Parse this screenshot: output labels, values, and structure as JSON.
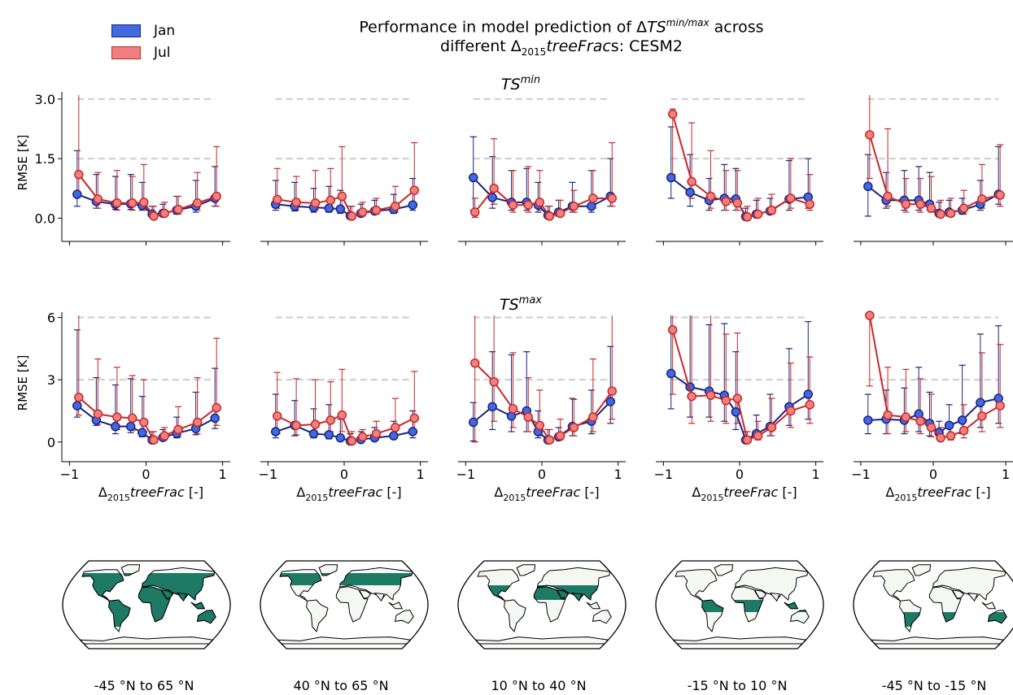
{
  "figure": {
    "title_prefix": "Performance in model prediction of Δ",
    "title_var": "TS",
    "title_sup": "min/max",
    "title_suffix": " across",
    "title_line2_prefix": "different Δ",
    "title_line2_sub": "2015",
    "title_line2_var": "treeFrac",
    "title_line2_suffix": "s: CESM2"
  },
  "legend": [
    {
      "label": "Jan",
      "fill": "#4169e1",
      "edge": "#1a237e"
    },
    {
      "label": "Jul",
      "fill": "#f08080",
      "edge": "#c62828"
    }
  ],
  "row_titles": [
    {
      "var": "TS",
      "sup": "min"
    },
    {
      "var": "TS",
      "sup": "max"
    }
  ],
  "ylabel": "RMSE [K]",
  "xlabel": {
    "prefix": "Δ",
    "sub": "2015",
    "var": "treeFrac",
    "suffix": " [-]"
  },
  "map_labels": [
    "-45 °N to 65 °N",
    "40 °N to 65 °N",
    "10 °N to 40 °N",
    "-15 °N to 10 °N",
    "-45 °N to -15 °N"
  ],
  "colors": {
    "jan_line": "#1a237e",
    "jan_fill": "#4169e1",
    "jul_line": "#c62828",
    "jul_fill": "#f08080",
    "ref_line": "#cccccc",
    "land": "#1f7a65",
    "land_other": "#f4f7f2"
  },
  "chart_data": [
    {
      "type": "line",
      "row": "TS_min",
      "ylim": [
        -0.3,
        3.1
      ],
      "yticks": [
        "0.0",
        "1.5",
        "3.0"
      ],
      "xticks": [
        "−1",
        "0",
        "1"
      ],
      "reference_lines": [
        1.5,
        3.0
      ],
      "x": [
        -0.9,
        -0.65,
        -0.4,
        -0.2,
        -0.05,
        0.08,
        0.22,
        0.4,
        0.65,
        0.9
      ],
      "panels": [
        {
          "jan": [
            0.6,
            0.42,
            0.35,
            0.36,
            0.32,
            0.1,
            0.12,
            0.2,
            0.3,
            0.5
          ],
          "jan_hi": [
            1.7,
            1.1,
            1.05,
            1.1,
            0.9,
            0.3,
            0.35,
            0.55,
            0.95,
            1.3
          ],
          "jan_lo": [
            0.3,
            0.25,
            0.22,
            0.22,
            0.2,
            0.05,
            0.05,
            0.1,
            0.15,
            0.3
          ],
          "jul": [
            1.1,
            0.48,
            0.38,
            0.38,
            0.4,
            0.05,
            0.12,
            0.22,
            0.38,
            0.55
          ],
          "jul_hi": [
            3.1,
            1.15,
            1.2,
            1.05,
            1.35,
            0.3,
            0.4,
            0.55,
            1.15,
            1.8
          ],
          "jul_lo": [
            0.55,
            0.25,
            0.2,
            0.2,
            0.2,
            0.02,
            0.05,
            0.1,
            0.2,
            0.3
          ]
        },
        {
          "jan": [
            0.35,
            0.3,
            0.27,
            0.25,
            0.23,
            0.06,
            0.12,
            0.18,
            0.22,
            0.33
          ],
          "jan_hi": [
            0.95,
            0.9,
            0.75,
            0.8,
            0.7,
            0.3,
            0.35,
            0.45,
            0.6,
            1.0
          ],
          "jan_lo": [
            0.2,
            0.18,
            0.15,
            0.15,
            0.12,
            0.03,
            0.05,
            0.1,
            0.12,
            0.2
          ],
          "jul": [
            0.47,
            0.4,
            0.38,
            0.45,
            0.55,
            0.05,
            0.15,
            0.2,
            0.3,
            0.7
          ],
          "jul_hi": [
            1.25,
            1.05,
            1.2,
            1.25,
            1.8,
            0.3,
            0.4,
            0.5,
            0.8,
            1.9
          ],
          "jul_lo": [
            0.25,
            0.2,
            0.2,
            0.2,
            0.25,
            0.02,
            0.05,
            0.1,
            0.15,
            0.35
          ]
        },
        {
          "jan": [
            1.02,
            0.52,
            0.4,
            0.4,
            0.33,
            0.07,
            0.15,
            0.3,
            0.3,
            0.55
          ],
          "jan_hi": [
            2.05,
            1.55,
            1.2,
            1.25,
            0.9,
            0.3,
            0.45,
            0.9,
            1.2,
            1.5
          ],
          "jan_lo": [
            0.2,
            0.25,
            0.2,
            0.2,
            0.15,
            0.03,
            0.05,
            0.15,
            0.15,
            0.3
          ],
          "jul": [
            0.15,
            0.75,
            0.33,
            0.33,
            0.4,
            0.05,
            0.12,
            0.3,
            0.5,
            0.5
          ],
          "jul_hi": [
            0.5,
            2.0,
            1.2,
            1.3,
            1.2,
            0.3,
            0.45,
            0.7,
            1.2,
            1.9
          ],
          "jul_lo": [
            0.02,
            0.35,
            0.15,
            0.15,
            0.2,
            0.02,
            0.05,
            0.15,
            0.25,
            0.3
          ]
        },
        {
          "jan": [
            1.02,
            0.65,
            0.45,
            0.5,
            0.48,
            0.04,
            0.1,
            0.18,
            0.48,
            0.53
          ],
          "jan_hi": [
            2.3,
            1.6,
            1.0,
            1.35,
            1.25,
            0.25,
            0.45,
            0.5,
            1.45,
            1.5
          ],
          "jan_lo": [
            0.5,
            0.3,
            0.2,
            0.2,
            0.2,
            0.02,
            0.05,
            0.1,
            0.2,
            0.25
          ],
          "jul": [
            2.62,
            0.92,
            0.55,
            0.42,
            0.38,
            0.03,
            0.1,
            0.2,
            0.5,
            0.35
          ],
          "jul_hi": [
            2.75,
            2.4,
            1.7,
            1.2,
            1.2,
            0.3,
            0.5,
            0.6,
            1.5,
            1.1
          ],
          "jul_lo": [
            1.1,
            0.5,
            0.25,
            0.2,
            0.2,
            0.02,
            0.05,
            0.1,
            0.25,
            0.2
          ]
        },
        {
          "jan": [
            0.8,
            0.45,
            0.45,
            0.45,
            0.35,
            0.12,
            0.15,
            0.2,
            0.35,
            0.6
          ],
          "jan_hi": [
            1.6,
            1.15,
            1.2,
            1.3,
            1.15,
            0.4,
            0.45,
            0.5,
            0.95,
            1.8
          ],
          "jan_lo": [
            0.05,
            0.25,
            0.2,
            0.2,
            0.2,
            0.05,
            0.05,
            0.1,
            0.2,
            0.35
          ],
          "jul": [
            2.1,
            0.55,
            0.35,
            0.35,
            0.25,
            0.1,
            0.12,
            0.25,
            0.48,
            0.58
          ],
          "jul_hi": [
            3.1,
            2.25,
            1.0,
            1.0,
            1.05,
            0.45,
            0.5,
            0.7,
            1.35,
            1.85
          ],
          "jul_lo": [
            1.0,
            0.3,
            0.15,
            0.15,
            0.15,
            0.05,
            0.05,
            0.1,
            0.25,
            0.3
          ]
        }
      ]
    },
    {
      "type": "line",
      "row": "TS_max",
      "ylim": [
        -0.4,
        6.1
      ],
      "yticks": [
        "0",
        "3",
        "6"
      ],
      "xticks": [
        "−1",
        "0",
        "1"
      ],
      "reference_lines": [
        3,
        6
      ],
      "x": [
        -0.9,
        -0.65,
        -0.4,
        -0.2,
        -0.05,
        0.08,
        0.22,
        0.4,
        0.65,
        0.9
      ],
      "panels": [
        {
          "jan": [
            1.75,
            1.05,
            0.75,
            0.75,
            0.45,
            0.1,
            0.22,
            0.42,
            0.65,
            1.15
          ],
          "jan_hi": [
            5.4,
            3.1,
            2.75,
            3.05,
            2.2,
            0.5,
            0.6,
            1.2,
            2.4,
            3.55
          ],
          "jan_lo": [
            1.2,
            0.8,
            0.4,
            0.45,
            0.25,
            0.05,
            0.1,
            0.2,
            0.35,
            0.65
          ],
          "jul": [
            2.15,
            1.35,
            1.2,
            1.15,
            0.95,
            0.1,
            0.3,
            0.6,
            0.95,
            1.65
          ],
          "jul_hi": [
            6.1,
            4.0,
            3.6,
            3.2,
            3.0,
            0.5,
            0.7,
            1.7,
            3.1,
            5.0
          ],
          "jul_lo": [
            1.3,
            0.85,
            0.6,
            0.55,
            0.5,
            0.05,
            0.1,
            0.25,
            0.4,
            0.8
          ]
        },
        {
          "jan": [
            0.5,
            0.8,
            0.4,
            0.35,
            0.2,
            0.05,
            0.12,
            0.2,
            0.3,
            0.5
          ],
          "jan_hi": [
            2.3,
            2.0,
            1.6,
            1.8,
            1.1,
            0.4,
            0.5,
            0.7,
            1.0,
            1.5
          ],
          "jan_lo": [
            0.2,
            0.3,
            0.2,
            0.15,
            0.1,
            0.02,
            0.05,
            0.1,
            0.15,
            0.2
          ],
          "jul": [
            1.25,
            0.8,
            0.85,
            1.05,
            1.3,
            0.05,
            0.25,
            0.4,
            0.7,
            1.15
          ],
          "jul_hi": [
            3.35,
            3.05,
            3.0,
            2.9,
            3.5,
            0.5,
            0.6,
            1.0,
            2.1,
            3.4
          ],
          "jul_lo": [
            0.4,
            0.35,
            0.4,
            0.5,
            0.5,
            0.02,
            0.1,
            0.2,
            0.35,
            0.5
          ]
        },
        {
          "jan": [
            0.95,
            1.7,
            1.25,
            1.5,
            0.5,
            0.1,
            0.25,
            0.75,
            1.0,
            1.95
          ],
          "jan_hi": [
            1.9,
            4.35,
            4.2,
            4.35,
            1.5,
            0.6,
            0.7,
            2.1,
            2.5,
            4.6
          ],
          "jan_lo": [
            0.05,
            0.6,
            0.5,
            0.5,
            0.2,
            0.05,
            0.1,
            0.3,
            0.4,
            0.9
          ],
          "jul": [
            3.8,
            2.9,
            1.6,
            1.2,
            0.8,
            0.1,
            0.3,
            0.7,
            1.2,
            2.45
          ],
          "jul_hi": [
            6.1,
            6.1,
            4.3,
            3.1,
            2.5,
            0.6,
            1.1,
            2.05,
            4.0,
            6.1
          ],
          "jul_lo": [
            0.0,
            1.0,
            0.7,
            0.5,
            0.3,
            0.05,
            0.1,
            0.3,
            0.5,
            1.1
          ]
        },
        {
          "jan": [
            3.3,
            2.65,
            2.45,
            2.25,
            1.45,
            0.1,
            0.4,
            0.75,
            1.7,
            2.3
          ],
          "jan_hi": [
            6.1,
            6.1,
            5.65,
            5.7,
            4.35,
            0.5,
            1.3,
            2.3,
            4.5,
            5.8
          ],
          "jan_lo": [
            1.6,
            1.2,
            1.2,
            1.0,
            0.6,
            0.05,
            0.2,
            0.3,
            0.8,
            1.1
          ],
          "jul": [
            5.4,
            2.2,
            2.25,
            2.0,
            2.1,
            0.1,
            0.3,
            0.7,
            1.5,
            1.8
          ],
          "jul_hi": [
            6.1,
            6.1,
            6.1,
            5.2,
            5.25,
            0.5,
            1.0,
            2.1,
            3.8,
            4.1
          ],
          "jul_lo": [
            2.3,
            0.9,
            1.0,
            0.9,
            0.9,
            0.05,
            0.1,
            0.3,
            0.7,
            0.9
          ]
        },
        {
          "jan": [
            1.05,
            1.1,
            1.05,
            1.35,
            0.9,
            0.45,
            0.8,
            1.05,
            1.9,
            2.1
          ],
          "jan_hi": [
            2.3,
            2.5,
            2.6,
            3.6,
            2.4,
            1.0,
            1.8,
            3.7,
            5.2,
            5.6
          ],
          "jan_lo": [
            0.4,
            0.4,
            0.4,
            0.5,
            0.3,
            0.15,
            0.3,
            0.4,
            0.7,
            0.9
          ],
          "jul": [
            6.1,
            1.3,
            1.2,
            1.0,
            0.7,
            0.2,
            0.3,
            0.55,
            1.25,
            1.75
          ],
          "jul_hi": [
            6.1,
            3.6,
            3.5,
            3.05,
            2.3,
            0.7,
            0.8,
            1.8,
            4.3,
            4.7
          ],
          "jul_lo": [
            2.7,
            0.4,
            0.5,
            0.4,
            0.25,
            0.05,
            0.1,
            0.2,
            0.5,
            0.7
          ]
        }
      ]
    }
  ]
}
